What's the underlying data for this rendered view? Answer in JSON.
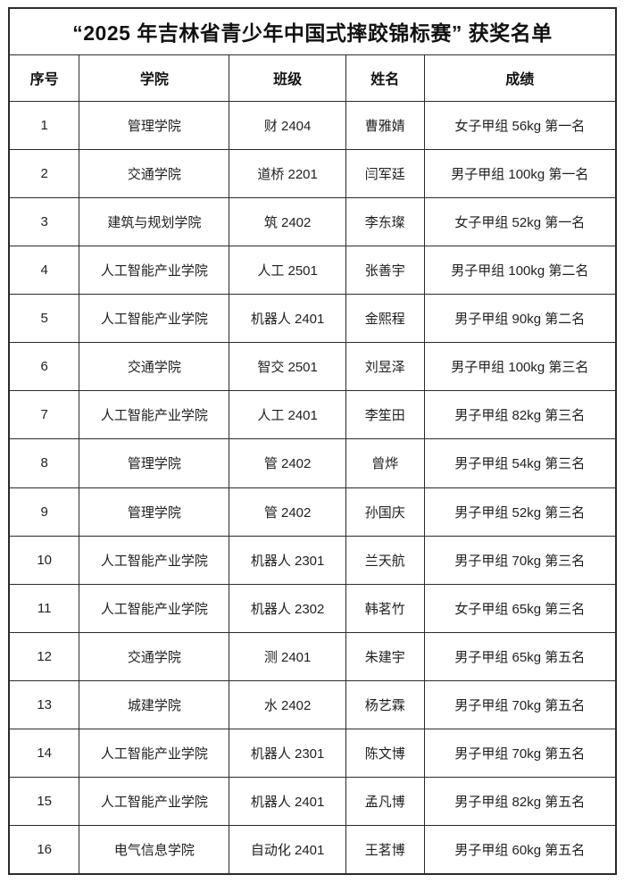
{
  "title": "“2025 年吉林省青少年中国式摔跤锦标赛” 获奖名单",
  "table": {
    "headers": [
      "序号",
      "学院",
      "班级",
      "姓名",
      "成绩"
    ],
    "rows": [
      [
        "1",
        "管理学院",
        "财 2404",
        "曹雅婧",
        "女子甲组 56kg 第一名"
      ],
      [
        "2",
        "交通学院",
        "道桥 2201",
        "闫军廷",
        "男子甲组 100kg 第一名"
      ],
      [
        "3",
        "建筑与规划学院",
        "筑 2402",
        "李东璨",
        "女子甲组 52kg 第一名"
      ],
      [
        "4",
        "人工智能产业学院",
        "人工 2501",
        "张善宇",
        "男子甲组 100kg 第二名"
      ],
      [
        "5",
        "人工智能产业学院",
        "机器人 2401",
        "金熙程",
        "男子甲组 90kg 第二名"
      ],
      [
        "6",
        "交通学院",
        "智交 2501",
        "刘昱泽",
        "男子甲组 100kg 第三名"
      ],
      [
        "7",
        "人工智能产业学院",
        "人工 2401",
        "李笙田",
        "男子甲组 82kg 第三名"
      ],
      [
        "8",
        "管理学院",
        "管 2402",
        "曾烨",
        "男子甲组 54kg 第三名"
      ],
      [
        "9",
        "管理学院",
        "管 2402",
        "孙国庆",
        "男子甲组 52kg 第三名"
      ],
      [
        "10",
        "人工智能产业学院",
        "机器人 2301",
        "兰天航",
        "男子甲组 70kg 第三名"
      ],
      [
        "11",
        "人工智能产业学院",
        "机器人 2302",
        "韩茗竹",
        "女子甲组 65kg 第三名"
      ],
      [
        "12",
        "交通学院",
        "测 2401",
        "朱建宇",
        "男子甲组 65kg 第五名"
      ],
      [
        "13",
        "城建学院",
        "水 2402",
        "杨艺霖",
        "男子甲组 70kg 第五名"
      ],
      [
        "14",
        "人工智能产业学院",
        "机器人 2301",
        "陈文博",
        "男子甲组 70kg 第五名"
      ],
      [
        "15",
        "人工智能产业学院",
        "机器人 2401",
        "孟凡博",
        "男子甲组 82kg 第五名"
      ],
      [
        "16",
        "电气信息学院",
        "自动化 2401",
        "王茗博",
        "男子甲组 60kg 第五名"
      ]
    ]
  },
  "colors": {
    "background": "#ffffff",
    "border": "#2b2b2b",
    "text": "#1a1a1a"
  }
}
